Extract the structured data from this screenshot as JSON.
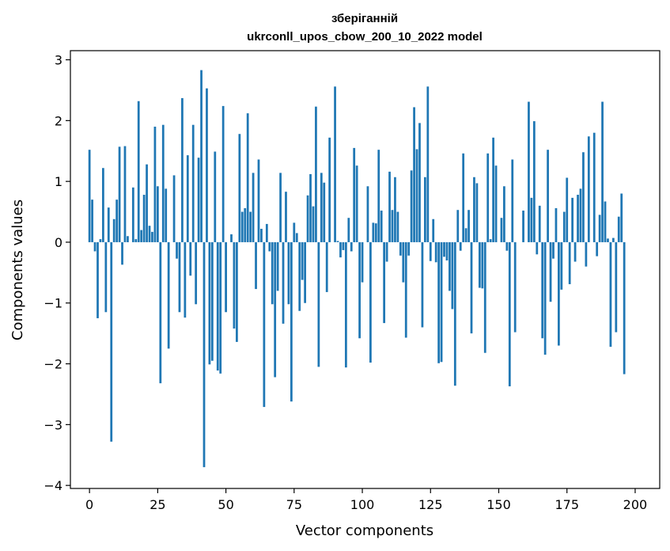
{
  "chart_data": {
    "type": "bar",
    "title": "зберіганній",
    "subtitle": "ukrconll_upos_cbow_200_10_2022 model",
    "xlabel": "Vector components",
    "ylabel": "Components values",
    "xlim": [
      -7,
      209
    ],
    "ylim": [
      -4.05,
      3.15
    ],
    "xticks": [
      0,
      25,
      50,
      75,
      100,
      125,
      150,
      175,
      200
    ],
    "yticks": [
      -4,
      -3,
      -2,
      -1,
      0,
      1,
      2,
      3
    ],
    "xtick_labels": [
      "0",
      "25",
      "50",
      "75",
      "100",
      "125",
      "150",
      "175",
      "200"
    ],
    "ytick_labels": [
      "−4",
      "−3",
      "−2",
      "−1",
      "0",
      "1",
      "2",
      "3"
    ],
    "grid": false,
    "bar_color": "#1f77b4",
    "values": [
      1.52,
      0.7,
      -0.15,
      -1.25,
      0.05,
      1.22,
      -1.15,
      0.57,
      -3.28,
      0.38,
      0.7,
      1.57,
      -0.37,
      1.58,
      0.1,
      0.0,
      0.9,
      0.05,
      2.32,
      0.2,
      0.78,
      1.28,
      0.27,
      0.17,
      1.9,
      0.92,
      -2.32,
      1.93,
      0.88,
      -1.75,
      0.0,
      1.1,
      -0.27,
      -1.15,
      2.37,
      -1.24,
      1.43,
      -0.55,
      1.93,
      -1.02,
      1.39,
      2.83,
      -3.7,
      2.53,
      -2.01,
      -1.95,
      1.49,
      -2.11,
      -2.16,
      2.24,
      -1.15,
      0.0,
      0.13,
      -1.42,
      -1.64,
      1.78,
      0.5,
      0.56,
      2.12,
      0.5,
      1.14,
      -0.77,
      1.36,
      0.22,
      -2.71,
      0.3,
      -0.15,
      -1.02,
      -2.22,
      -0.8,
      1.14,
      -1.34,
      0.83,
      -1.02,
      -2.62,
      0.32,
      0.15,
      -1.13,
      -0.62,
      -1.0,
      0.77,
      1.12,
      0.59,
      2.23,
      -2.05,
      1.14,
      0.98,
      -0.82,
      1.72,
      0.0,
      2.56,
      0.02,
      -0.25,
      -0.13,
      -2.06,
      0.4,
      -0.15,
      1.55,
      1.26,
      -1.58,
      -0.66,
      0.0,
      0.92,
      -1.98,
      0.32,
      0.31,
      1.52,
      0.52,
      -1.33,
      -0.32,
      1.16,
      0.53,
      1.07,
      0.5,
      -0.22,
      -0.66,
      -1.57,
      -0.22,
      1.18,
      2.22,
      1.53,
      1.96,
      -1.4,
      1.07,
      2.56,
      -0.31,
      0.38,
      -0.33,
      -1.99,
      -1.97,
      -0.24,
      -0.3,
      -0.8,
      -1.1,
      -2.36,
      0.53,
      -0.14,
      1.46,
      0.23,
      0.53,
      -1.5,
      1.07,
      0.97,
      -0.75,
      -0.76,
      -1.82,
      1.46,
      0.05,
      1.72,
      1.26,
      0.0,
      0.4,
      0.92,
      -0.14,
      -2.37,
      1.36,
      -1.48,
      0.0,
      0.0,
      0.52,
      0.0,
      2.31,
      0.73,
      1.99,
      -0.2,
      0.6,
      -1.58,
      -1.85,
      1.52,
      -0.98,
      -0.27,
      0.56,
      -1.7,
      -0.78,
      0.5,
      1.06,
      -0.69,
      0.73,
      -0.32,
      0.78,
      0.88,
      1.48,
      -0.4,
      1.74,
      0.0,
      1.8,
      -0.23,
      0.45,
      2.31,
      0.67,
      0.06,
      -1.72,
      0.07,
      -1.48,
      0.42,
      0.8,
      -2.17
    ]
  }
}
